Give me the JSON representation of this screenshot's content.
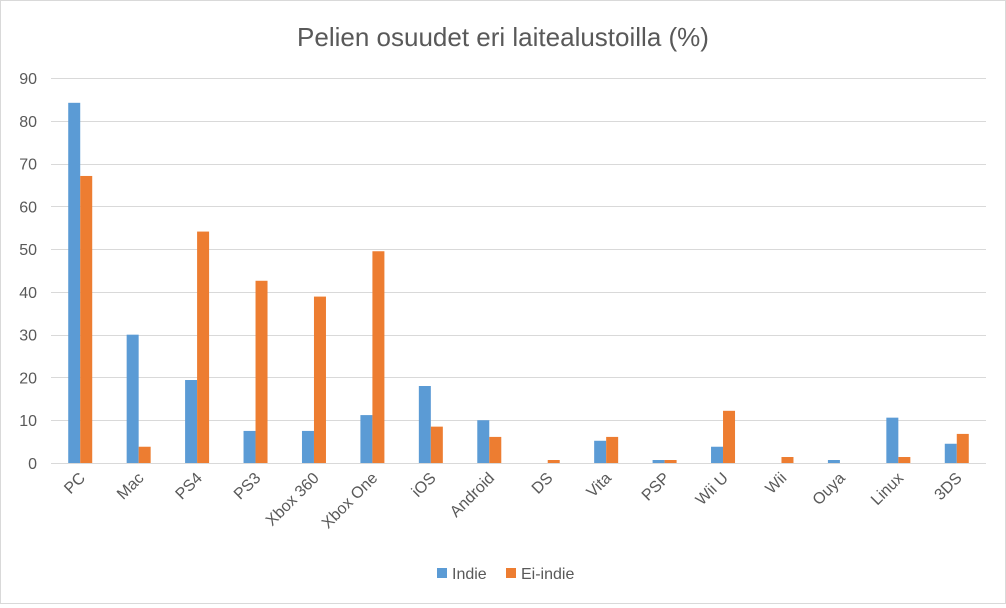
{
  "chart_data": {
    "type": "bar",
    "title": "Pelien osuudet eri laitealustoilla (%)",
    "xlabel": "",
    "ylabel": "",
    "ylim": [
      0,
      90
    ],
    "yticks": [
      0,
      10,
      20,
      30,
      40,
      50,
      60,
      70,
      80,
      90
    ],
    "grid": true,
    "legend_position": "bottom",
    "categories": [
      "PC",
      "Mac",
      "PS4",
      "PS3",
      "Xbox 360",
      "Xbox One",
      "iOS",
      "Android",
      "DS",
      "Vita",
      "PSP",
      "Wii U",
      "Wii",
      "Ouya",
      "Linux",
      "3DS"
    ],
    "series": [
      {
        "name": "Indie",
        "color": "#5b9bd5",
        "values": [
          84.2,
          30.0,
          19.4,
          7.5,
          7.5,
          11.2,
          18.0,
          10.0,
          0.0,
          5.2,
          0.7,
          3.8,
          0.0,
          0.7,
          10.6,
          4.5
        ]
      },
      {
        "name": "Ei-indie",
        "color": "#ed7d31",
        "values": [
          67.1,
          3.8,
          54.1,
          42.6,
          38.9,
          49.5,
          8.5,
          6.1,
          0.7,
          6.1,
          0.7,
          12.2,
          1.4,
          0.0,
          1.4,
          6.8
        ]
      }
    ]
  }
}
